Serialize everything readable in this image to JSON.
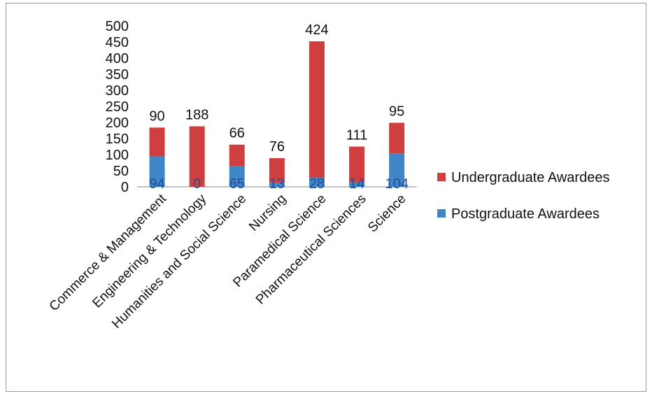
{
  "chart_data": {
    "type": "bar",
    "stacked": true,
    "title": "",
    "xlabel": "",
    "ylabel": "",
    "ylim": [
      0,
      500
    ],
    "yticks": [
      0,
      50,
      100,
      150,
      200,
      250,
      300,
      350,
      400,
      450,
      500
    ],
    "grid": false,
    "legend_position": "right",
    "categories": [
      "Commerce & Management",
      "Engineering & Technology",
      "Humanities and Social Science",
      "Nursing",
      "Paramedical Science",
      "Pharmaceutical Sciences",
      "Science"
    ],
    "series": [
      {
        "name": "Postgraduate Awardees",
        "color": "#3f86c6",
        "values": [
          94,
          0,
          65,
          13,
          28,
          14,
          104
        ],
        "labels": [
          "94",
          "0",
          "65",
          "13",
          "28",
          "14",
          "104"
        ]
      },
      {
        "name": "Undergraduate Awardees",
        "color": "#cf3f3f",
        "values": [
          90,
          188,
          66,
          76,
          424,
          111,
          95
        ],
        "labels": [
          "90",
          "188",
          "66",
          "76",
          "424",
          "111",
          "95"
        ]
      }
    ],
    "legend_order": [
      "Undergraduate Awardees",
      "Postgraduate Awardees"
    ]
  }
}
